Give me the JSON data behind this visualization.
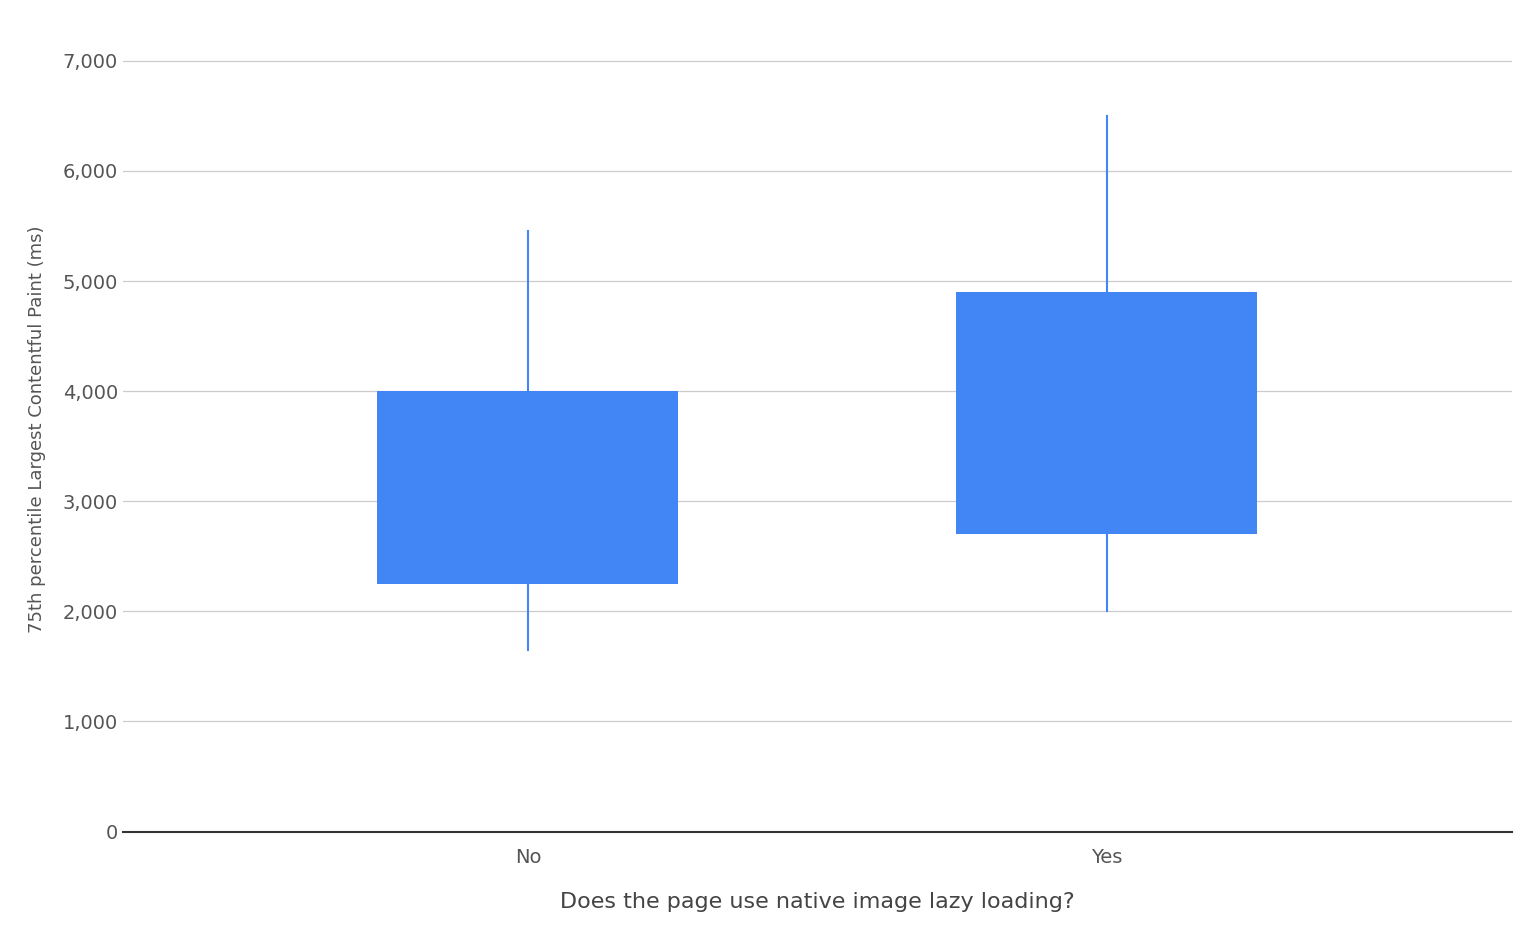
{
  "categories": [
    "No",
    "Yes"
  ],
  "boxes": [
    {
      "q1": 2250,
      "q3": 4000,
      "whisker_low": 1650,
      "whisker_high": 5450
    },
    {
      "q1": 2700,
      "q3": 4900,
      "whisker_low": 2000,
      "whisker_high": 6500
    }
  ],
  "box_color": "#4285F4",
  "whisker_color": "#4285F4",
  "box_width": 0.52,
  "xlabel": "Does the page use native image lazy loading?",
  "ylabel": "75th percentile Largest Contentful Paint (ms)",
  "ylim": [
    0,
    7300
  ],
  "yticks": [
    0,
    1000,
    2000,
    3000,
    4000,
    5000,
    6000,
    7000
  ],
  "ytick_labels": [
    "0",
    "1,000",
    "2,000",
    "3,000",
    "4,000",
    "5,000",
    "6,000",
    "7,000"
  ],
  "background_color": "#ffffff",
  "grid_color": "#cccccc",
  "xlabel_fontsize": 16,
  "ylabel_fontsize": 13,
  "tick_fontsize": 14,
  "axis_label_color": "#555555",
  "xlim": [
    0.3,
    2.7
  ],
  "x_positions": [
    1,
    2
  ]
}
